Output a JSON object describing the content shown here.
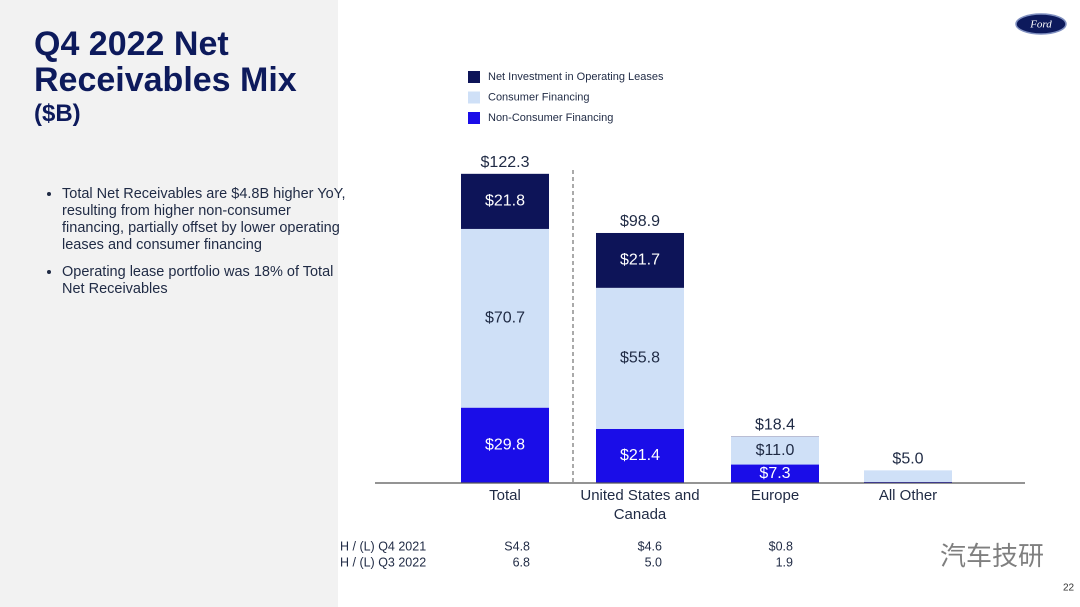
{
  "title_lines": [
    "Q4 2022 Net",
    "Receivables Mix"
  ],
  "unit": "($B)",
  "bullets": [
    "Total Net Receivables are $4.8B higher YoY, resulting from higher non-consumer financing, partially offset by lower operating leases and consumer financing",
    "Operating lease portfolio was 18% of Total Net Receivables"
  ],
  "logo": "Ford",
  "page_number": "22",
  "watermark": "汽车技研",
  "chart_data": {
    "type": "stacked_bar",
    "categories": [
      "Total",
      "United States and Canada",
      "Europe",
      "All Other"
    ],
    "ylim": [
      0,
      125
    ],
    "series": [
      {
        "name": "Non-Consumer Financing",
        "color": "#1a0de8",
        "label_color": "#ffffff",
        "values": [
          29.8,
          21.4,
          7.3,
          0.4
        ],
        "value_labels": [
          "$29.8",
          "$21.4",
          "$7.3",
          null
        ]
      },
      {
        "name": "Consumer Financing",
        "color": "#cfe0f7",
        "label_color": "#1f2a44",
        "values": [
          70.7,
          55.8,
          11.0,
          4.6
        ],
        "value_labels": [
          "$70.7",
          "$55.8",
          "$11.0",
          null
        ]
      },
      {
        "name": "Net Investment in Operating Leases",
        "color": "#0d1458",
        "label_color": "#ffffff",
        "values": [
          21.8,
          21.7,
          0.1,
          0
        ],
        "value_labels": [
          "$21.8",
          "$21.7",
          null,
          null
        ]
      }
    ],
    "totals": [
      122.3,
      98.9,
      18.4,
      5.0
    ],
    "total_labels": [
      "$122.3",
      "$98.9",
      "$18.4",
      "$5.0"
    ],
    "legend_order": [
      2,
      1,
      0
    ]
  },
  "table": {
    "rows": [
      {
        "label": "H / (L) Q4 2021",
        "cells": [
          "S4.8",
          "$4.6",
          "$0.8"
        ]
      },
      {
        "label": "H / (L) Q3 2022",
        "cells": [
          "6.8",
          "5.0",
          "1.9"
        ]
      }
    ]
  }
}
